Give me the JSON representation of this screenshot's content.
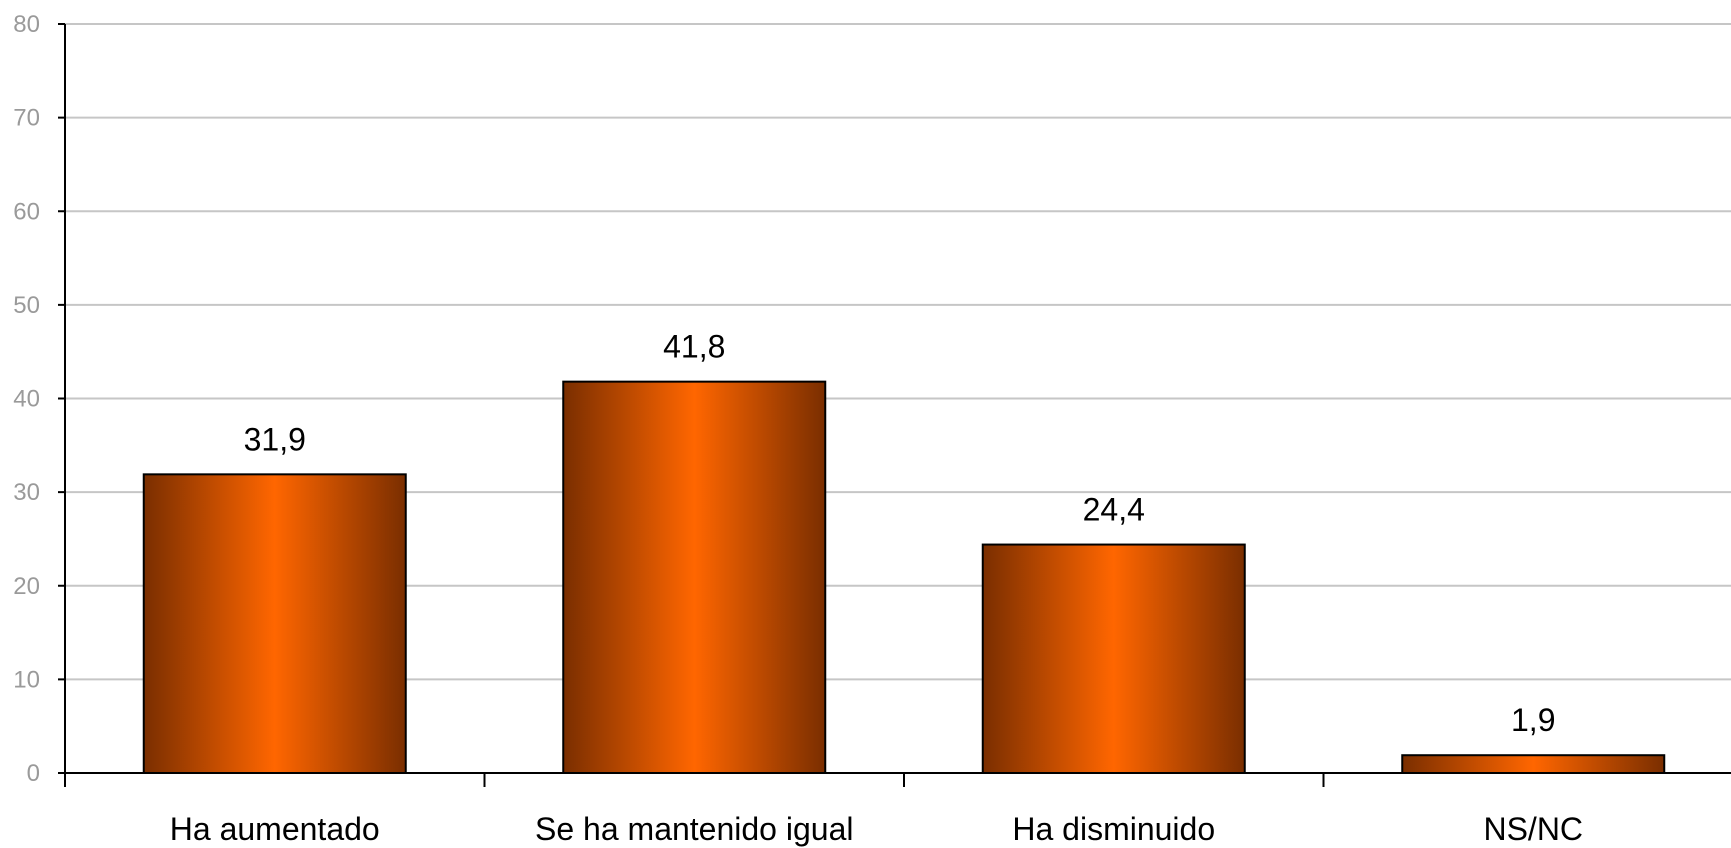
{
  "chart_data": {
    "type": "bar",
    "title": "",
    "xlabel": "",
    "ylabel": "",
    "categories": [
      "Ha aumentado",
      "Se ha mantenido igual",
      "Ha disminuido",
      "NS/NC"
    ],
    "values": [
      31.9,
      41.8,
      24.4,
      1.9
    ],
    "data_labels": [
      "31,9",
      "41,8",
      "24,4",
      "1,9"
    ],
    "ylim": [
      0,
      80
    ],
    "yticks": [
      0,
      10,
      20,
      30,
      40,
      50,
      60,
      70,
      80
    ],
    "grid": true,
    "legend": "none",
    "colors": {
      "bar_center": "#ff6600",
      "bar_edge": "#7a2e00",
      "grid": "#c6c6c6",
      "tick_text": "#9a9a9a"
    }
  }
}
